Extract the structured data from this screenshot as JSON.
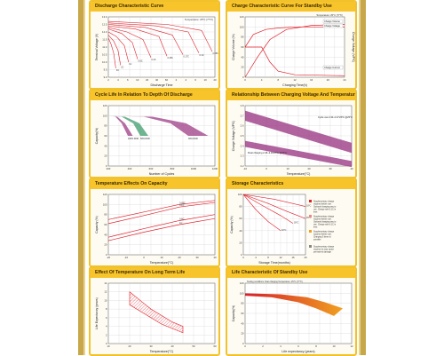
{
  "page": {
    "background": "#ffffff",
    "accent": "#f7c42c",
    "curve_color": "#e0202a",
    "band_purple": "#9c3c86",
    "band_green": "#3f9c6d",
    "band_orange": "#f0a020"
  },
  "chart_data": [
    {
      "id": "discharge",
      "type": "line",
      "title": "Discharge Characteristic Curve",
      "xlabel": "Discharge Time",
      "ylabel": "Terminal Voltage (V)",
      "annotation": "Temperature: 25°C (77°F)",
      "ylim": [
        9.0,
        13.0
      ],
      "xlim": [
        0,
        20
      ],
      "ytick_labels": [
        "13.0",
        "12.5",
        "12.0",
        "11.5",
        "11.0",
        "10.5",
        "10.0",
        "9.5",
        "9.0"
      ],
      "xtick_labels": [
        "2",
        "4",
        "6",
        "10",
        "20",
        "40",
        "60",
        "2",
        "4",
        "6",
        "10",
        "20"
      ],
      "series": [
        {
          "name": "3C",
          "x": [
            0,
            0.5,
            1,
            1.4
          ],
          "y": [
            11.6,
            11.2,
            10.6,
            9.6
          ]
        },
        {
          "name": "2C",
          "x": [
            0,
            1,
            1.8,
            2.3
          ],
          "y": [
            11.8,
            11.4,
            10.8,
            9.8
          ]
        },
        {
          "name": "1C",
          "x": [
            0,
            1.5,
            3,
            3.8
          ],
          "y": [
            12.0,
            11.7,
            11.1,
            10.0
          ]
        },
        {
          "name": "0.6C",
          "x": [
            0,
            2.5,
            4.5,
            5.5
          ],
          "y": [
            12.2,
            11.9,
            11.3,
            10.2
          ]
        },
        {
          "name": "0.4C",
          "x": [
            0,
            3.5,
            6.5,
            8
          ],
          "y": [
            12.3,
            12.0,
            11.5,
            10.3
          ]
        },
        {
          "name": "0.25C",
          "x": [
            0,
            5,
            9.5,
            11
          ],
          "y": [
            12.4,
            12.2,
            11.7,
            10.4
          ]
        },
        {
          "name": "0.17C",
          "x": [
            0,
            7,
            12,
            14
          ],
          "y": [
            12.5,
            12.3,
            11.8,
            10.5
          ]
        },
        {
          "name": "0.1C",
          "x": [
            0,
            9,
            15,
            17
          ],
          "y": [
            12.6,
            12.4,
            12.0,
            10.6
          ]
        },
        {
          "name": "0.05C",
          "x": [
            0,
            11,
            17.5,
            19.5
          ],
          "y": [
            12.7,
            12.5,
            12.1,
            10.7
          ]
        }
      ]
    },
    {
      "id": "standby",
      "type": "line",
      "title": "Charge Characteristic Curve For Standby Use",
      "xlabel": "Charging Time(h)",
      "ylabel": "Charge Volume (%)",
      "ylabel2": "Charge Voltage (V/PC)",
      "annotation": "Temperature: 25°C (77°F)",
      "ylim": [
        0,
        120
      ],
      "xlim": [
        0,
        24
      ],
      "ytick_labels": [
        "120",
        "100",
        "80",
        "60",
        "40",
        "20",
        "0"
      ],
      "xtick_labels": [
        "0",
        "4",
        "8",
        "12",
        "16",
        "20",
        "24"
      ],
      "series": [
        {
          "name": "Charge Volume",
          "x": [
            0,
            3,
            6,
            10,
            16,
            24
          ],
          "y": [
            0,
            40,
            75,
            95,
            103,
            105
          ]
        },
        {
          "name": "Charge Voltage",
          "x": [
            0,
            2,
            5,
            8,
            12,
            24
          ],
          "y": [
            60,
            85,
            95,
            98,
            100,
            100
          ]
        },
        {
          "name": "Charge Current",
          "x": [
            0,
            4,
            6,
            8,
            12,
            24
          ],
          "y": [
            60,
            60,
            30,
            12,
            5,
            3
          ]
        }
      ],
      "labels": [
        "Charge Volume",
        "Charge Voltage",
        "Charge Current"
      ]
    },
    {
      "id": "cycle",
      "type": "area",
      "title": "Cycle Life In Relation To Depth Of Discharge",
      "xlabel": "Number of Cycles",
      "ylabel": "Capacity(%)",
      "ylim": [
        0,
        120
      ],
      "xlim": [
        0,
        1200
      ],
      "ytick_labels": [
        "120",
        "100",
        "80",
        "60",
        "40",
        "20",
        "0"
      ],
      "xtick_labels": [
        "200",
        "400",
        "600",
        "800",
        "1000",
        "1200"
      ],
      "series": [
        {
          "name": "100% DOD",
          "color": "#9c3c86",
          "x": [
            0,
            80,
            150,
            220
          ],
          "y": [
            100,
            98,
            85,
            60
          ]
        },
        {
          "name": "50% DOD",
          "color": "#3f9c6d",
          "x": [
            0,
            150,
            280,
            360
          ],
          "y": [
            100,
            98,
            85,
            60
          ]
        },
        {
          "name": "30% DOD",
          "color": "#9c3c86",
          "x": [
            0,
            400,
            700,
            900
          ],
          "y": [
            100,
            98,
            85,
            60
          ]
        }
      ]
    },
    {
      "id": "voltage_temp",
      "type": "area",
      "title": "Relationship Between Charging Voltage And Temperature",
      "xlabel": "Temperature(°C)",
      "ylabel": "Charge Voltage (V/PC)",
      "ylim": [
        2.2,
        2.8
      ],
      "xlim": [
        -10,
        40
      ],
      "ytick_labels": [
        "2.8",
        "2.7",
        "2.6",
        "2.5",
        "2.4",
        "2.3",
        "2.2"
      ],
      "xtick_labels": [
        "-10",
        "0",
        "10",
        "20",
        "30",
        "40"
      ],
      "series": [
        {
          "name": "Cycle use",
          "color": "#9c3c86",
          "x": [
            -10,
            40
          ],
          "y": [
            2.7,
            2.38
          ]
        },
        {
          "name": "Float charging",
          "color": "#9c3c86",
          "x": [
            -10,
            40
          ],
          "y": [
            2.42,
            2.22
          ]
        }
      ],
      "labels": [
        "Cycle use 2.40~2.47V/PC @25°C",
        "Float charging 2.25~2.30V/PC @25°C"
      ]
    },
    {
      "id": "temp_capacity",
      "type": "line",
      "title": "Temperature Effects On Capacity",
      "xlabel": "Temperature(°C)",
      "ylabel": "Capacity (%)",
      "ylim": [
        0,
        120
      ],
      "xlim": [
        -20,
        40
      ],
      "ytick_labels": [
        "120",
        "100",
        "80",
        "60",
        "40",
        "20",
        "0"
      ],
      "xtick_labels": [
        "-20",
        "-10",
        "0",
        "10",
        "20",
        "30",
        "40"
      ],
      "series": [
        {
          "name": "0.05C",
          "x": [
            -20,
            0,
            20,
            40
          ],
          "y": [
            70,
            85,
            100,
            108
          ]
        },
        {
          "name": "0.1C",
          "x": [
            -20,
            0,
            20,
            40
          ],
          "y": [
            62,
            78,
            95,
            104
          ]
        },
        {
          "name": "0.6C",
          "x": [
            -20,
            0,
            20,
            40
          ],
          "y": [
            35,
            52,
            68,
            80
          ]
        },
        {
          "name": "1C",
          "x": [
            -20,
            0,
            20,
            40
          ],
          "y": [
            28,
            45,
            60,
            72
          ]
        }
      ]
    },
    {
      "id": "storage",
      "type": "line",
      "title": "Storage Characteristics",
      "xlabel": "Storage Time(months)",
      "ylabel": "Capacity (%)",
      "ylim": [
        0,
        100
      ],
      "xlim": [
        0,
        20
      ],
      "ytick_labels": [
        "100",
        "80",
        "60",
        "40",
        "20",
        "0"
      ],
      "xtick_labels": [
        "0",
        "4",
        "8",
        "12",
        "16",
        "20"
      ],
      "series": [
        {
          "name": "40°C",
          "x": [
            0,
            4,
            8,
            12
          ],
          "y": [
            100,
            75,
            55,
            40
          ]
        },
        {
          "name": "30°C",
          "x": [
            0,
            6,
            12,
            16
          ],
          "y": [
            100,
            82,
            65,
            52
          ]
        },
        {
          "name": "25°C",
          "x": [
            0,
            8,
            14,
            20
          ],
          "y": [
            100,
            85,
            72,
            60
          ]
        },
        {
          "name": "10°C",
          "x": [
            0,
            10,
            20
          ],
          "y": [
            100,
            92,
            80
          ]
        }
      ],
      "legend": [
        "Supplementary charge required before use. Optional charging way to use. Charge with 0.1C in time.",
        "Supplementary charge required before use. Optional charging way to use. Charge with 0.1C in time.",
        "Supplementary charge required before use. Charging 5 times is possible",
        "Supplementary charge required or may cause permanent damage"
      ]
    },
    {
      "id": "long_life",
      "type": "area",
      "title": "Effect Of Temperature On Long Term Life",
      "xlabel": "Temperature(°C)",
      "ylabel": "Life Expectancy (years)",
      "ylim": [
        0,
        14
      ],
      "xlim": [
        10,
        60
      ],
      "ytick_labels": [
        "14",
        "12",
        "10",
        "8",
        "6",
        "4",
        "2",
        "0"
      ],
      "xtick_labels": [
        "10",
        "20",
        "30",
        "40",
        "50",
        "60"
      ],
      "series": [
        {
          "name": "upper",
          "x": [
            20,
            25,
            30,
            35,
            40,
            45
          ],
          "y": [
            12,
            10,
            8,
            6.5,
            5,
            4
          ]
        },
        {
          "name": "lower",
          "x": [
            20,
            25,
            30,
            35,
            40,
            45
          ],
          "y": [
            9,
            7.5,
            6,
            4.5,
            3.5,
            2.5
          ]
        }
      ]
    },
    {
      "id": "standby_life",
      "type": "area",
      "title": "Life Characteristic Of Standby Use",
      "xlabel": "Life expectancy (years)",
      "ylabel": "Capacity(%)",
      "annotation": "Testing conditions: float charging Temperature: 25°C (77°F)",
      "ylim": [
        0,
        120
      ],
      "xlim": [
        0,
        12
      ],
      "ytick_labels": [
        "120",
        "100",
        "80",
        "60",
        "40",
        "20",
        "0"
      ],
      "xtick_labels": [
        "0",
        "2",
        "4",
        "6",
        "8",
        "10",
        "12"
      ],
      "series": [
        {
          "name": "upper",
          "x": [
            0,
            4,
            7,
            9,
            11
          ],
          "y": [
            100,
            98,
            92,
            82,
            70
          ]
        },
        {
          "name": "lower",
          "x": [
            0,
            3,
            6,
            8,
            10
          ],
          "y": [
            95,
            92,
            82,
            70,
            55
          ]
        }
      ]
    }
  ]
}
